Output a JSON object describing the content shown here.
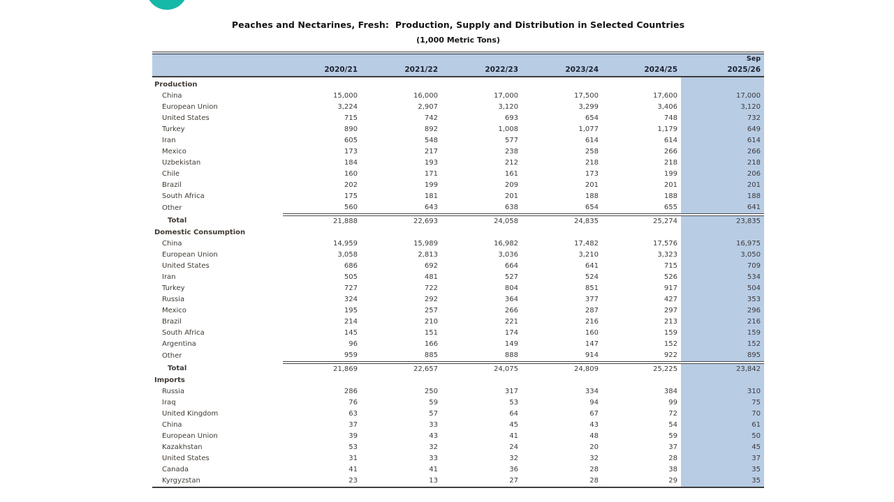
{
  "page": {
    "title": "Peaches and Nectarines, Fresh:  Production, Supply and Distribution in Selected Countries",
    "subtitle": "(1,000 Metric Tons)"
  },
  "table": {
    "forecast_note": "Sep",
    "year_columns": [
      "2020/21",
      "2021/22",
      "2022/23",
      "2023/24",
      "2024/25",
      "2025/26"
    ],
    "sections": [
      {
        "name": "Production",
        "rows": [
          {
            "label": "China",
            "values": [
              "15,000",
              "16,000",
              "17,000",
              "17,500",
              "17,600",
              "17,000"
            ]
          },
          {
            "label": "European Union",
            "values": [
              "3,224",
              "2,907",
              "3,120",
              "3,299",
              "3,406",
              "3,120"
            ]
          },
          {
            "label": "United States",
            "values": [
              "715",
              "742",
              "693",
              "654",
              "748",
              "732"
            ]
          },
          {
            "label": "Turkey",
            "values": [
              "890",
              "892",
              "1,008",
              "1,077",
              "1,179",
              "649"
            ]
          },
          {
            "label": "Iran",
            "values": [
              "605",
              "548",
              "577",
              "614",
              "614",
              "614"
            ]
          },
          {
            "label": "Mexico",
            "values": [
              "173",
              "217",
              "238",
              "258",
              "266",
              "266"
            ]
          },
          {
            "label": "Uzbekistan",
            "values": [
              "184",
              "193",
              "212",
              "218",
              "218",
              "218"
            ]
          },
          {
            "label": "Chile",
            "values": [
              "160",
              "171",
              "161",
              "173",
              "199",
              "206"
            ]
          },
          {
            "label": "Brazil",
            "values": [
              "202",
              "199",
              "209",
              "201",
              "201",
              "201"
            ]
          },
          {
            "label": "South Africa",
            "values": [
              "175",
              "181",
              "201",
              "188",
              "188",
              "188"
            ]
          },
          {
            "label": "Other",
            "values": [
              "560",
              "643",
              "638",
              "654",
              "655",
              "641"
            ]
          }
        ],
        "total_label": "Total",
        "total": [
          "21,888",
          "22,693",
          "24,058",
          "24,835",
          "25,274",
          "23,835"
        ]
      },
      {
        "name": "Domestic Consumption",
        "rows": [
          {
            "label": "China",
            "values": [
              "14,959",
              "15,989",
              "16,982",
              "17,482",
              "17,576",
              "16,975"
            ]
          },
          {
            "label": "European Union",
            "values": [
              "3,058",
              "2,813",
              "3,036",
              "3,210",
              "3,323",
              "3,050"
            ]
          },
          {
            "label": "United States",
            "values": [
              "686",
              "692",
              "664",
              "641",
              "715",
              "709"
            ]
          },
          {
            "label": "Iran",
            "values": [
              "505",
              "481",
              "527",
              "524",
              "526",
              "534"
            ]
          },
          {
            "label": "Turkey",
            "values": [
              "727",
              "722",
              "804",
              "851",
              "917",
              "504"
            ]
          },
          {
            "label": "Russia",
            "values": [
              "324",
              "292",
              "364",
              "377",
              "427",
              "353"
            ]
          },
          {
            "label": "Mexico",
            "values": [
              "195",
              "257",
              "266",
              "287",
              "297",
              "296"
            ]
          },
          {
            "label": "Brazil",
            "values": [
              "214",
              "210",
              "221",
              "216",
              "213",
              "216"
            ]
          },
          {
            "label": "South Africa",
            "values": [
              "145",
              "151",
              "174",
              "160",
              "159",
              "159"
            ]
          },
          {
            "label": "Argentina",
            "values": [
              "96",
              "166",
              "149",
              "147",
              "152",
              "152"
            ]
          },
          {
            "label": "Other",
            "values": [
              "959",
              "885",
              "888",
              "914",
              "922",
              "895"
            ]
          }
        ],
        "total_label": "Total",
        "total": [
          "21,869",
          "22,657",
          "24,075",
          "24,809",
          "25,225",
          "23,842"
        ]
      },
      {
        "name": "Imports",
        "rows": [
          {
            "label": "Russia",
            "values": [
              "286",
              "250",
              "317",
              "334",
              "384",
              "310"
            ]
          },
          {
            "label": "Iraq",
            "values": [
              "76",
              "59",
              "53",
              "94",
              "99",
              "75"
            ]
          },
          {
            "label": "United Kingdom",
            "values": [
              "63",
              "57",
              "64",
              "67",
              "72",
              "70"
            ]
          },
          {
            "label": "China",
            "values": [
              "37",
              "33",
              "45",
              "43",
              "54",
              "61"
            ]
          },
          {
            "label": "European Union",
            "values": [
              "39",
              "43",
              "41",
              "48",
              "59",
              "50"
            ]
          },
          {
            "label": "Kazakhstan",
            "values": [
              "53",
              "32",
              "24",
              "20",
              "37",
              "45"
            ]
          },
          {
            "label": "United States",
            "values": [
              "31",
              "33",
              "32",
              "32",
              "28",
              "37"
            ]
          },
          {
            "label": "Canada",
            "values": [
              "41",
              "41",
              "36",
              "28",
              "38",
              "35"
            ]
          },
          {
            "label": "Kyrgyzstan",
            "values": [
              "23",
              "13",
              "27",
              "28",
              "29",
              "35"
            ]
          }
        ],
        "total_label": null,
        "total": null
      }
    ]
  },
  "colors": {
    "header_band": "#b8cce4",
    "highlight_column": "#b8cce4",
    "table_border": "#3d3d3d",
    "accent_dot": "#16b8a8",
    "text": "#3a3a3e"
  }
}
